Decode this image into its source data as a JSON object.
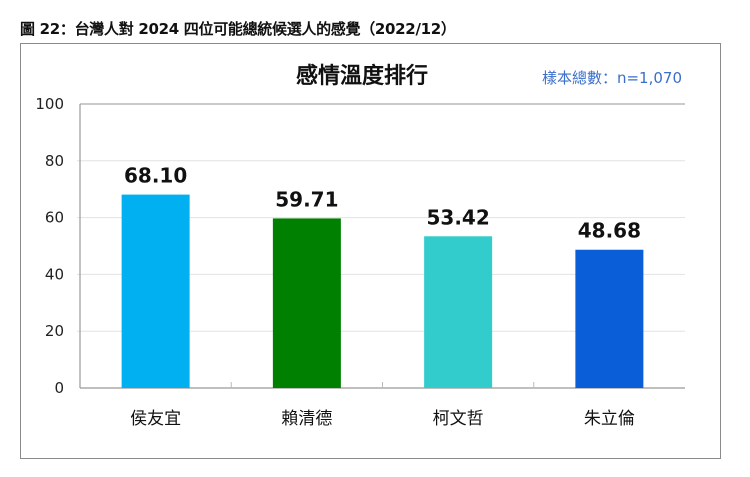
{
  "figure_title": "圖 22：台灣人對 2024 四位可能總統候選人的感覺（2022/12）",
  "chart_data": {
    "type": "bar",
    "title": "感情溫度排行",
    "annotation": "樣本總數：n=1,070",
    "categories": [
      "侯友宜",
      "賴清德",
      "柯文哲",
      "朱立倫"
    ],
    "values": [
      68.1,
      59.71,
      53.42,
      48.68
    ],
    "value_labels": [
      "68.10",
      "59.71",
      "53.42",
      "48.68"
    ],
    "colors": [
      "#00B0F0",
      "#008000",
      "#33CCCC",
      "#0A5FD8"
    ],
    "ylim": [
      0,
      100
    ],
    "yticks": [
      "0",
      "20",
      "40",
      "60",
      "80",
      "100"
    ],
    "grid": true,
    "xlabel": "",
    "ylabel": ""
  }
}
